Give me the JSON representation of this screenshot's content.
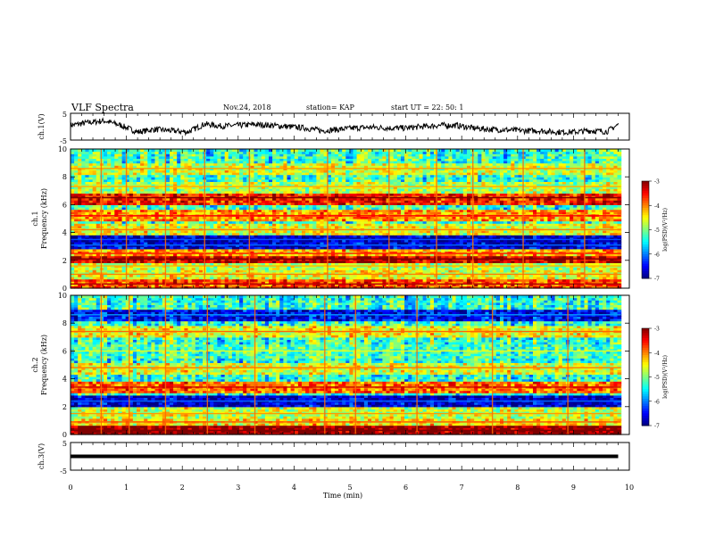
{
  "header": {
    "title": "VLF Spectra",
    "date": "Nov.24, 2018",
    "station": "station= KAP",
    "start": "start  UT  =   22: 50: 1"
  },
  "chart_data": [
    {
      "type": "line",
      "panel": "ch1-waveform",
      "ylabel": "ch.1(V)",
      "ylim": [
        -5,
        5
      ],
      "yticks": [
        "5",
        "-5"
      ],
      "xlim": [
        0,
        10
      ],
      "series": [
        {
          "x": [
            0,
            0.3,
            0.6,
            0.9,
            1.2,
            1.5,
            1.8,
            2.1,
            2.4,
            2.7,
            3.0,
            3.3,
            3.6,
            3.9,
            4.2,
            4.5,
            4.8,
            5.1,
            5.4,
            5.7,
            6.0,
            6.3,
            6.6,
            6.9,
            7.2,
            7.5,
            7.8,
            8.1,
            8.4,
            8.7,
            9.0,
            9.3,
            9.6,
            9.8
          ],
          "y": [
            0.5,
            1.5,
            2.2,
            0.5,
            -2.0,
            -1.0,
            -1.5,
            -2.0,
            1.0,
            0.2,
            0.5,
            0.8,
            0.5,
            0.0,
            -0.5,
            -1.5,
            -1.0,
            -0.5,
            -0.2,
            -0.5,
            -0.5,
            0.0,
            0.5,
            0.5,
            -0.5,
            -1.0,
            -1.2,
            -1.5,
            -1.5,
            -2.0,
            -2.0,
            -1.5,
            -1.8,
            0.8
          ]
        }
      ]
    },
    {
      "type": "heatmap",
      "panel": "ch1-spectrogram",
      "ylabel": "ch.1\nFrequency (kHz)",
      "xlim": [
        0,
        10
      ],
      "ylim": [
        0,
        10
      ],
      "yticks": [
        "0",
        "2",
        "4",
        "6",
        "8",
        "10"
      ],
      "colorbar": {
        "label": "log(PSD)(V²/Hz)",
        "ticks": [
          "-3",
          "-4",
          "-5",
          "-6",
          "-7"
        ],
        "range": [
          -7,
          -3
        ]
      },
      "bands": [
        {
          "f": 0.3,
          "level": -3.8
        },
        {
          "f": 1.0,
          "level": -4.6
        },
        {
          "f": 1.6,
          "level": -4.8
        },
        {
          "f": 2.1,
          "level": -3.3
        },
        {
          "f": 2.5,
          "level": -4.2
        },
        {
          "f": 3.5,
          "level": -6.8
        },
        {
          "f": 3.1,
          "level": -6.7
        },
        {
          "f": 4.2,
          "level": -4.6
        },
        {
          "f": 5.2,
          "level": -4.1
        },
        {
          "f": 6.5,
          "level": -3.6
        },
        {
          "f": 7.3,
          "level": -4.8
        },
        {
          "f": 8.6,
          "level": -4.7
        }
      ],
      "lines_t": [
        0.55,
        1.0,
        1.7,
        2.4,
        3.2,
        4.6,
        5.7,
        6.55,
        7.2,
        8.1,
        9.2
      ]
    },
    {
      "type": "heatmap",
      "panel": "ch2-spectrogram",
      "ylabel": "ch.2\nFrequency (kHz)",
      "xlim": [
        0,
        10
      ],
      "ylim": [
        0,
        10
      ],
      "yticks": [
        "0",
        "2",
        "4",
        "6",
        "8",
        "10"
      ],
      "colorbar": {
        "label": "log(PSD)(V²/Hz)",
        "ticks": [
          "-3",
          "-4",
          "-5",
          "-6",
          "-7"
        ],
        "range": [
          -7,
          -3
        ]
      },
      "bands": [
        {
          "f": 0.3,
          "level": -3.0
        },
        {
          "f": 0.9,
          "level": -4.4
        },
        {
          "f": 1.5,
          "level": -4.7
        },
        {
          "f": 2.4,
          "level": -6.7
        },
        {
          "f": 3.4,
          "level": -3.9
        },
        {
          "f": 4.8,
          "level": -4.6
        },
        {
          "f": 6.0,
          "level": -5.2
        },
        {
          "f": 7.4,
          "level": -4.5
        },
        {
          "f": 8.6,
          "level": -6.5
        }
      ],
      "lines_t": [
        0.55,
        1.05,
        1.7,
        2.45,
        3.3,
        4.55,
        5.1,
        6.2,
        7.55,
        8.9
      ]
    },
    {
      "type": "line",
      "panel": "ch3-waveform",
      "ylabel": "ch.3(V)",
      "ylim": [
        -5,
        5
      ],
      "yticks": [
        "5",
        "-5"
      ],
      "xlim": [
        0,
        10
      ],
      "xlabel": "Time  (min)",
      "xticks": [
        "0",
        "1",
        "2",
        "3",
        "4",
        "5",
        "6",
        "7",
        "8",
        "9",
        "10"
      ],
      "series": [
        {
          "x": [
            0,
            9.8
          ],
          "y": [
            0,
            0
          ]
        }
      ]
    }
  ]
}
